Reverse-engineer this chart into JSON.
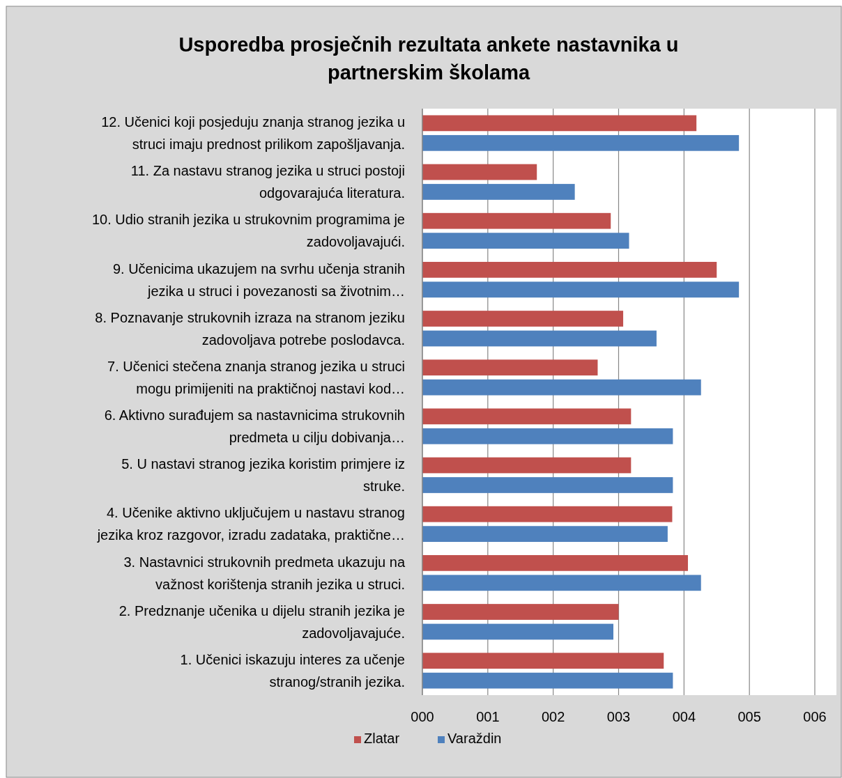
{
  "chart_data": {
    "type": "bar",
    "orientation": "horizontal",
    "title": "Usporedba prosječnih rezultata ankete nastavnika u partnerskim školama",
    "categories": [
      "12. Učenici koji posjeduju znanja stranog jezika u struci imaju prednost prilikom zapošljavanja.",
      "11. Za nastavu stranog jezika u struci postoji odgovarajuća literatura.",
      "10. Udio stranih jezika u strukovnim programima je zadovoljavajući.",
      "9. Učenicima ukazujem na svrhu učenja stranih jezika u struci i povezanosti sa životnim…",
      "8. Poznavanje strukovnih izraza na stranom jeziku zadovoljava potrebe poslodavca.",
      "7. Učenici stečena znanja stranog jezika u struci mogu primijeniti na praktičnoj nastavi kod…",
      "6. Aktivno surađujem sa nastavnicima strukovnih predmeta u cilju dobivanja…",
      "5. U nastavi stranog jezika koristim primjere iz struke.",
      "4. Učenike aktivno uključujem u nastavu stranog jezika kroz razgovor, izradu zadataka, praktične…",
      "3. Nastavnici strukovnih predmeta ukazuju na važnost korištenja stranih jezika u struci.",
      "2. Predznanje učenika u dijelu stranih jezika je zadovoljavajuće.",
      "1. Učenici iskazuju interes za učenje stranog/stranih jezika."
    ],
    "series": [
      {
        "name": "Zlatar",
        "color": "#c0504d",
        "values": [
          4.19,
          1.75,
          2.88,
          4.5,
          3.07,
          2.68,
          3.19,
          3.19,
          3.82,
          4.06,
          3.0,
          3.69
        ]
      },
      {
        "name": "Varaždin",
        "color": "#4f81bd",
        "values": [
          4.84,
          2.33,
          3.16,
          4.84,
          3.58,
          4.26,
          3.83,
          3.83,
          3.75,
          4.26,
          2.92,
          3.83
        ]
      }
    ],
    "xlim": [
      0,
      6
    ],
    "xticks": [
      {
        "value": 0,
        "label": "000"
      },
      {
        "value": 1,
        "label": "001"
      },
      {
        "value": 2,
        "label": "002"
      },
      {
        "value": 3,
        "label": "003"
      },
      {
        "value": 4,
        "label": "004"
      },
      {
        "value": 5,
        "label": "005"
      },
      {
        "value": 6,
        "label": "006"
      }
    ],
    "grid": "x",
    "legend": "bottom"
  }
}
